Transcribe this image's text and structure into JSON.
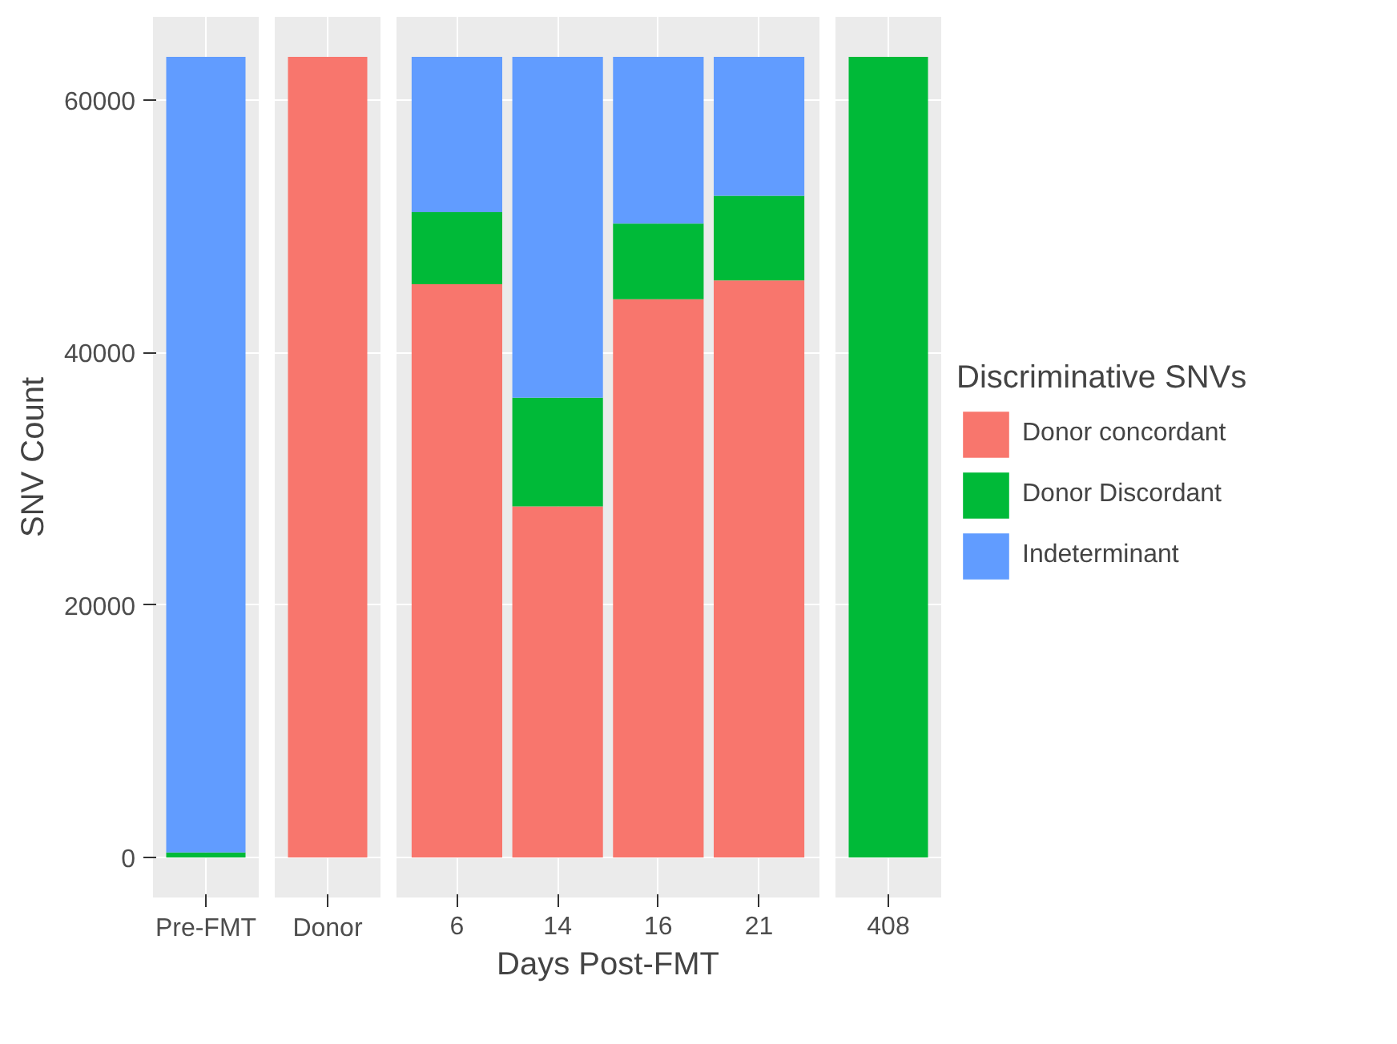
{
  "chart_data": [
    {
      "type": "bar",
      "stacked": true,
      "categories": [
        "Pre-FMT"
      ],
      "ylabel": "SNV Count",
      "ylim": [
        -3170,
        66570
      ],
      "yticks": [
        0,
        20000,
        40000,
        60000
      ],
      "grid": true,
      "series": [
        {
          "color": "#f8766d",
          "values": [
            0
          ]
        },
        {
          "color": "#00ba38",
          "values": [
            400
          ]
        },
        {
          "color": "#619cff",
          "values": [
            63000
          ]
        }
      ]
    },
    {
      "type": "bar",
      "stacked": true,
      "categories": [
        "Donor"
      ],
      "ylim": [
        -3170,
        66570
      ],
      "yticks": [
        0,
        20000,
        40000,
        60000
      ],
      "tick_labels": "x",
      "grid": true,
      "series": [
        {
          "color": "#f8766d",
          "values": [
            63400
          ]
        },
        {
          "color": "#00ba38",
          "values": [
            0
          ]
        },
        {
          "color": "#619cff",
          "values": [
            0
          ]
        }
      ]
    },
    {
      "type": "bar",
      "stacked": true,
      "categories": [
        "6",
        "14",
        "16",
        "21"
      ],
      "xlabel": "Days Post-FMT",
      "ylim": [
        -3170,
        66570
      ],
      "yticks": [
        0,
        20000,
        40000,
        60000
      ],
      "tick_labels": "x",
      "grid": true,
      "series": [
        {
          "color": "#f8766d",
          "values": [
            45400,
            27800,
            44200,
            45700
          ]
        },
        {
          "color": "#00ba38",
          "values": [
            5700,
            8600,
            6000,
            6700
          ]
        },
        {
          "color": "#619cff",
          "values": [
            12300,
            27000,
            13200,
            11000
          ]
        }
      ]
    },
    {
      "type": "bar",
      "stacked": true,
      "categories": [
        "408"
      ],
      "ylim": [
        -3170,
        66570
      ],
      "yticks": [
        0,
        20000,
        40000,
        60000
      ],
      "tick_labels": "x",
      "grid": true,
      "legend": "right",
      "legend_title": "Discriminative SNVs",
      "series": [
        {
          "name": "Donor concordant",
          "color": "#f8766d",
          "values": [
            0
          ]
        },
        {
          "name": "Donor Discordant",
          "color": "#00ba38",
          "values": [
            63400
          ]
        },
        {
          "name": "Indeterminant",
          "color": "#619cff",
          "values": [
            0
          ]
        }
      ]
    }
  ]
}
